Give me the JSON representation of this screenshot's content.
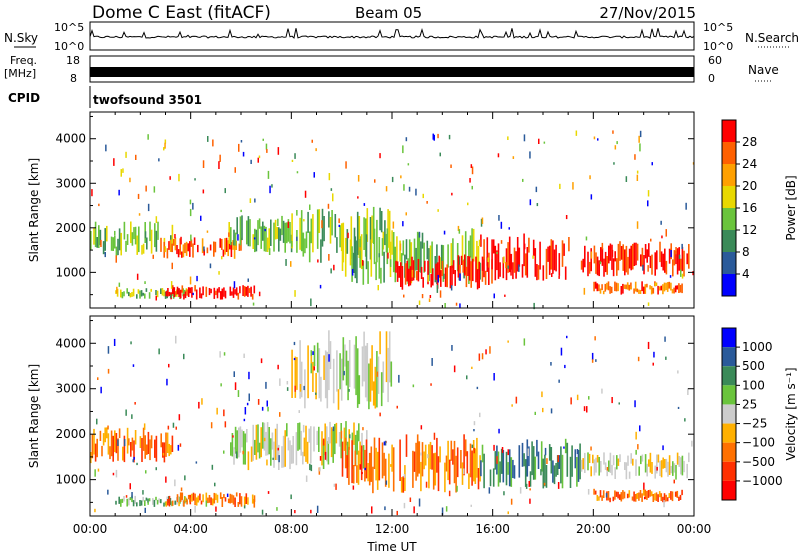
{
  "header": {
    "station": "Dome C East (fitACF)",
    "beam": "Beam 05",
    "date": "27/Nov/2015"
  },
  "top_panels": {
    "nsky_label": "N.Sky",
    "nsky_ticks": [
      "10^5",
      "10^0"
    ],
    "nsearch_label": "N.Search",
    "freq_label_1": "Freq.",
    "freq_label_2": "[MHz]",
    "freq_ticks": [
      "18",
      "8"
    ],
    "nave_ticks": [
      "60",
      "0"
    ],
    "nave_label": "Nave",
    "cpid_label": "CPID",
    "cpid_value": "twofsound 3501"
  },
  "chart_data": [
    {
      "type": "heatmap",
      "name": "power",
      "xlabel": "",
      "ylabel": "Slant Range [km]",
      "xlim": [
        0,
        24
      ],
      "ylim": [
        200,
        4600
      ],
      "y_ticks": [
        1000,
        2000,
        3000,
        4000
      ],
      "colorbar": {
        "label": "Power [dB]",
        "ticks": [
          "28",
          "24",
          "20",
          "16",
          "12",
          "8",
          "4"
        ],
        "colors": [
          "#ff0000",
          "#ff6000",
          "#ffa000",
          "#e8d800",
          "#6ac43c",
          "#3a8a58",
          "#2a5a9a",
          "#0000ff"
        ]
      },
      "regions": [
        {
          "t0": 0.0,
          "t1": 3.3,
          "r0": 1350,
          "r1": 2150,
          "level": 4
        },
        {
          "t0": 1.0,
          "t1": 3.8,
          "r0": 400,
          "r1": 650,
          "level": 4
        },
        {
          "t0": 3.0,
          "t1": 6.5,
          "r0": 380,
          "r1": 720,
          "level": 0
        },
        {
          "t0": 2.6,
          "t1": 6.0,
          "r0": 1300,
          "r1": 1800,
          "level": 1
        },
        {
          "t0": 5.5,
          "t1": 8.0,
          "r0": 1400,
          "r1": 2300,
          "level": 4
        },
        {
          "t0": 8.0,
          "t1": 12.0,
          "r0": 1200,
          "r1": 2500,
          "level": 4
        },
        {
          "t0": 10.0,
          "t1": 15.5,
          "r0": 700,
          "r1": 2000,
          "level": 4
        },
        {
          "t0": 12.0,
          "t1": 16.0,
          "r0": 600,
          "r1": 1400,
          "level": 0
        },
        {
          "t0": 15.5,
          "t1": 19.0,
          "r0": 800,
          "r1": 1900,
          "level": 0
        },
        {
          "t0": 19.5,
          "t1": 23.8,
          "r0": 900,
          "r1": 1700,
          "level": 0
        },
        {
          "t0": 20.0,
          "t1": 23.5,
          "r0": 500,
          "r1": 800,
          "level": 1
        }
      ]
    },
    {
      "type": "heatmap",
      "name": "velocity",
      "xlabel": "Time UT",
      "ylabel": "Slant Range [km]",
      "xlim": [
        0,
        24
      ],
      "ylim": [
        200,
        4600
      ],
      "x_ticks": [
        "00:00",
        "04:00",
        "08:00",
        "12:00",
        "16:00",
        "20:00",
        "00:00"
      ],
      "y_ticks": [
        1000,
        2000,
        3000,
        4000
      ],
      "colorbar": {
        "label": "Velocity [m s⁻¹]",
        "ticks": [
          "1000",
          "500",
          "100",
          "25",
          "−25",
          "−100",
          "−500",
          "−1000"
        ],
        "colors": [
          "#0000ff",
          "#2a5a9a",
          "#3a8a58",
          "#6ac43c",
          "#cccccc",
          "#ffb000",
          "#ff7000",
          "#ff3000",
          "#ff0000"
        ]
      },
      "regions": [
        {
          "t0": 0.0,
          "t1": 3.3,
          "r0": 1350,
          "r1": 2150,
          "level": 6
        },
        {
          "t0": 1.0,
          "t1": 3.8,
          "r0": 400,
          "r1": 650,
          "level": 3
        },
        {
          "t0": 3.0,
          "t1": 6.5,
          "r0": 380,
          "r1": 720,
          "level": 6
        },
        {
          "t0": 5.5,
          "t1": 11.0,
          "r0": 1200,
          "r1": 2300,
          "level": 4
        },
        {
          "t0": 8.0,
          "t1": 12.0,
          "r0": 2500,
          "r1": 4300,
          "level": 4
        },
        {
          "t0": 10.0,
          "t1": 15.5,
          "r0": 700,
          "r1": 2000,
          "level": 6
        },
        {
          "t0": 15.5,
          "t1": 19.5,
          "r0": 800,
          "r1": 1900,
          "level": 2
        },
        {
          "t0": 19.5,
          "t1": 23.8,
          "r0": 1000,
          "r1": 1600,
          "level": 4
        },
        {
          "t0": 20.0,
          "t1": 23.5,
          "r0": 500,
          "r1": 800,
          "level": 6
        }
      ]
    }
  ]
}
